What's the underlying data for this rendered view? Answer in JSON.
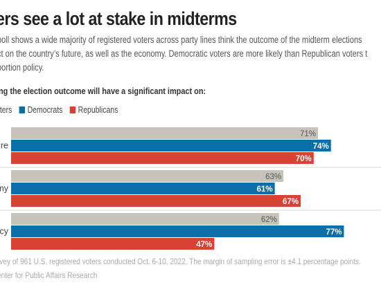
{
  "title": "ers see a lot at stake in midterms",
  "description": [
    "poll shows a wide majority of registered voters across party lines think the outcome of the midterm elections",
    "ct on the country’s future, as well as the economy. Democratic voters are more likely than Republican voters t",
    "portion policy."
  ],
  "subhead": "ng the election outcome will have a significant impact on:",
  "legend": [
    {
      "label": "oters",
      "color": "#c7c3bb"
    },
    {
      "label": "Democrats",
      "color": "#0a6eab"
    },
    {
      "label": "Republicans",
      "color": "#d84232"
    }
  ],
  "note": "rvey of 961 U.S. registered voters conducted Oct. 6-10, 2022. The margin of sampling error is ±4.1 percentage points.",
  "source": "enter for Public Affairs Research",
  "chart_data": {
    "type": "bar",
    "orientation": "horizontal",
    "categories": [
      "ure",
      "my",
      "icy"
    ],
    "series": [
      {
        "name": "oters",
        "color": "#c7c3bb",
        "values": [
          71,
          63,
          62
        ]
      },
      {
        "name": "Democrats",
        "color": "#0a6eab",
        "values": [
          74,
          61,
          77
        ]
      },
      {
        "name": "Republicans",
        "color": "#d84232",
        "values": [
          70,
          67,
          47
        ]
      }
    ],
    "value_suffix": "%",
    "xlim": [
      0,
      100
    ],
    "grid": false,
    "legend_position": "top"
  }
}
